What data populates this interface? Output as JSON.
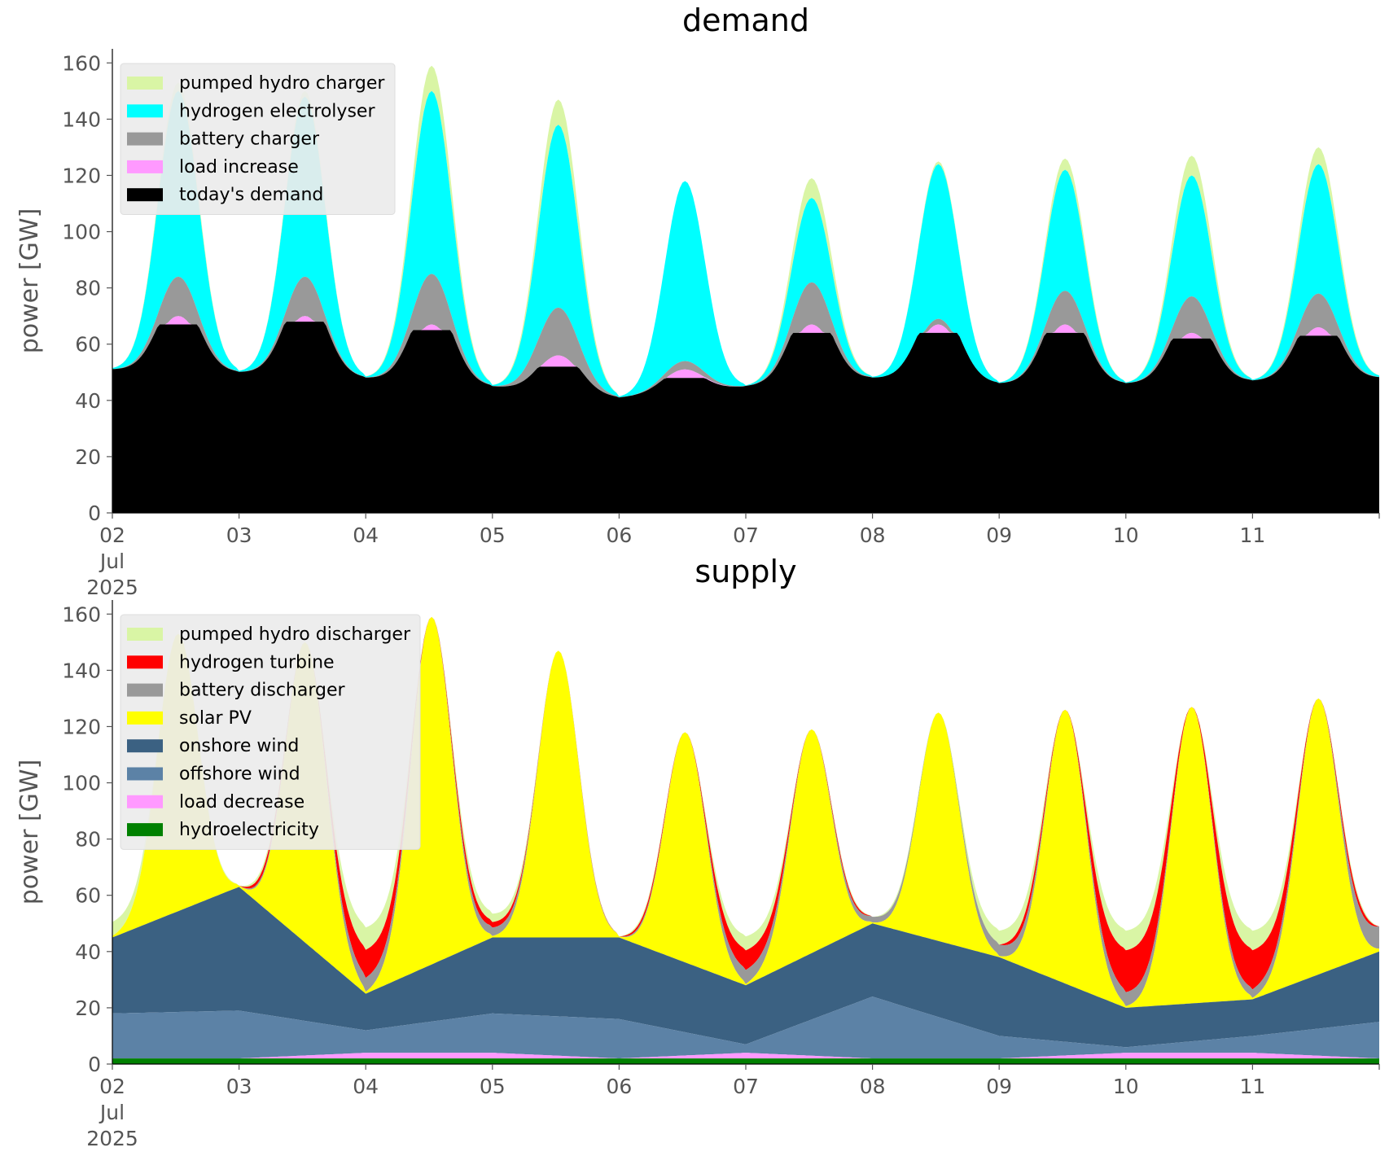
{
  "chart_data": [
    {
      "type": "area",
      "stacked": true,
      "title": "demand",
      "xlabel": "",
      "ylabel": "power [GW]",
      "ylim": [
        0,
        165
      ],
      "yticks": [
        0,
        20,
        40,
        60,
        80,
        100,
        120,
        140,
        160
      ],
      "x_range": [
        "2025-07-02",
        "2025-07-12"
      ],
      "xtick_labels": [
        "02\nJul\n2025",
        "03",
        "04",
        "05",
        "06",
        "07",
        "08",
        "09",
        "10",
        "11"
      ],
      "grid": false,
      "legend_position": "top-left",
      "series": [
        {
          "name": "today's demand",
          "color": "#000000"
        },
        {
          "name": "load increase",
          "color": "#ff99ff"
        },
        {
          "name": "battery charger",
          "color": "#999999"
        },
        {
          "name": "hydrogen electrolyser",
          "color": "#00ffff"
        },
        {
          "name": "pumped hydro charger",
          "color": "#d9f5a5"
        }
      ],
      "legend_order": [
        "pumped hydro charger",
        "hydrogen electrolyser",
        "battery charger",
        "load increase",
        "today's demand"
      ],
      "stacked_tops_by_day": [
        {
          "day": "2025-07-02",
          "night": 51,
          "peak": [
            67,
            70,
            84,
            150,
            153
          ]
        },
        {
          "day": "2025-07-03",
          "night": 50,
          "peak": [
            68,
            70,
            84,
            148,
            150
          ]
        },
        {
          "day": "2025-07-04",
          "night": 48,
          "peak": [
            65,
            67,
            85,
            150,
            159
          ]
        },
        {
          "day": "2025-07-05",
          "night": 45,
          "peak": [
            52,
            56,
            73,
            138,
            147
          ]
        },
        {
          "day": "2025-07-06",
          "night": 41,
          "peak": [
            48,
            51,
            54,
            118,
            118
          ]
        },
        {
          "day": "2025-07-07",
          "night": 45,
          "peak": [
            64,
            67,
            82,
            112,
            119
          ]
        },
        {
          "day": "2025-07-08",
          "night": 48,
          "peak": [
            64,
            67,
            69,
            124,
            125
          ]
        },
        {
          "day": "2025-07-09",
          "night": 46,
          "peak": [
            64,
            67,
            79,
            122,
            126
          ]
        },
        {
          "day": "2025-07-10",
          "night": 46,
          "peak": [
            62,
            64,
            77,
            120,
            127
          ]
        },
        {
          "day": "2025-07-11",
          "night": 47,
          "peak": [
            63,
            66,
            78,
            124,
            130
          ]
        },
        {
          "day": "2025-07-12",
          "night": 48
        }
      ]
    },
    {
      "type": "area",
      "stacked": true,
      "title": "supply",
      "xlabel": "",
      "ylabel": "power [GW]",
      "ylim": [
        0,
        165
      ],
      "yticks": [
        0,
        20,
        40,
        60,
        80,
        100,
        120,
        140,
        160
      ],
      "x_range": [
        "2025-07-02",
        "2025-07-12"
      ],
      "xtick_labels": [
        "02\nJul\n2025",
        "03",
        "04",
        "05",
        "06",
        "07",
        "08",
        "09",
        "10",
        "11"
      ],
      "grid": false,
      "legend_position": "top-left",
      "series": [
        {
          "name": "hydroelectricity",
          "color": "#008000"
        },
        {
          "name": "load decrease",
          "color": "#ff99ff"
        },
        {
          "name": "offshore wind",
          "color": "#5c82a6"
        },
        {
          "name": "onshore wind",
          "color": "#3b6182"
        },
        {
          "name": "solar PV",
          "color": "#ffff00"
        },
        {
          "name": "battery discharger",
          "color": "#999999"
        },
        {
          "name": "hydrogen turbine",
          "color": "#ff0000"
        },
        {
          "name": "pumped hydro discharger",
          "color": "#d9f5a5"
        }
      ],
      "legend_order": [
        "pumped hydro discharger",
        "hydrogen turbine",
        "battery discharger",
        "solar PV",
        "onshore wind",
        "offshore wind",
        "load decrease",
        "hydroelectricity"
      ],
      "stacked_tops_by_day": [
        {
          "day": "2025-07-02",
          "night": [
            2,
            2,
            18,
            45,
            45,
            45,
            45,
            50
          ],
          "peak_total": 153
        },
        {
          "day": "2025-07-03",
          "night": [
            2,
            2,
            19,
            63,
            63,
            63,
            63,
            63
          ],
          "peak_total": 150
        },
        {
          "day": "2025-07-04",
          "night": [
            2,
            4,
            12,
            25,
            25,
            30,
            40,
            48
          ],
          "peak_total": 159
        },
        {
          "day": "2025-07-05",
          "night": [
            2,
            4,
            18,
            45,
            45,
            48,
            50,
            53
          ],
          "peak_total": 147
        },
        {
          "day": "2025-07-06",
          "night": [
            2,
            2,
            16,
            45,
            45,
            45,
            45,
            45
          ],
          "peak_total": 118
        },
        {
          "day": "2025-07-07",
          "night": [
            2,
            4,
            7,
            28,
            28,
            33,
            40,
            45
          ],
          "peak_total": 119
        },
        {
          "day": "2025-07-08",
          "night": [
            2,
            2,
            24,
            50,
            50,
            52,
            52,
            52
          ],
          "peak_total": 125
        },
        {
          "day": "2025-07-09",
          "night": [
            2,
            2,
            10,
            38,
            38,
            42,
            42,
            47
          ],
          "peak_total": 126
        },
        {
          "day": "2025-07-10",
          "night": [
            2,
            4,
            6,
            20,
            20,
            25,
            40,
            47
          ],
          "peak_total": 127
        },
        {
          "day": "2025-07-11",
          "night": [
            2,
            4,
            10,
            23,
            23,
            26,
            40,
            47
          ],
          "peak_total": 130
        },
        {
          "day": "2025-07-12",
          "night": [
            2,
            2,
            15,
            40,
            40,
            48,
            48,
            48
          ]
        }
      ]
    }
  ]
}
